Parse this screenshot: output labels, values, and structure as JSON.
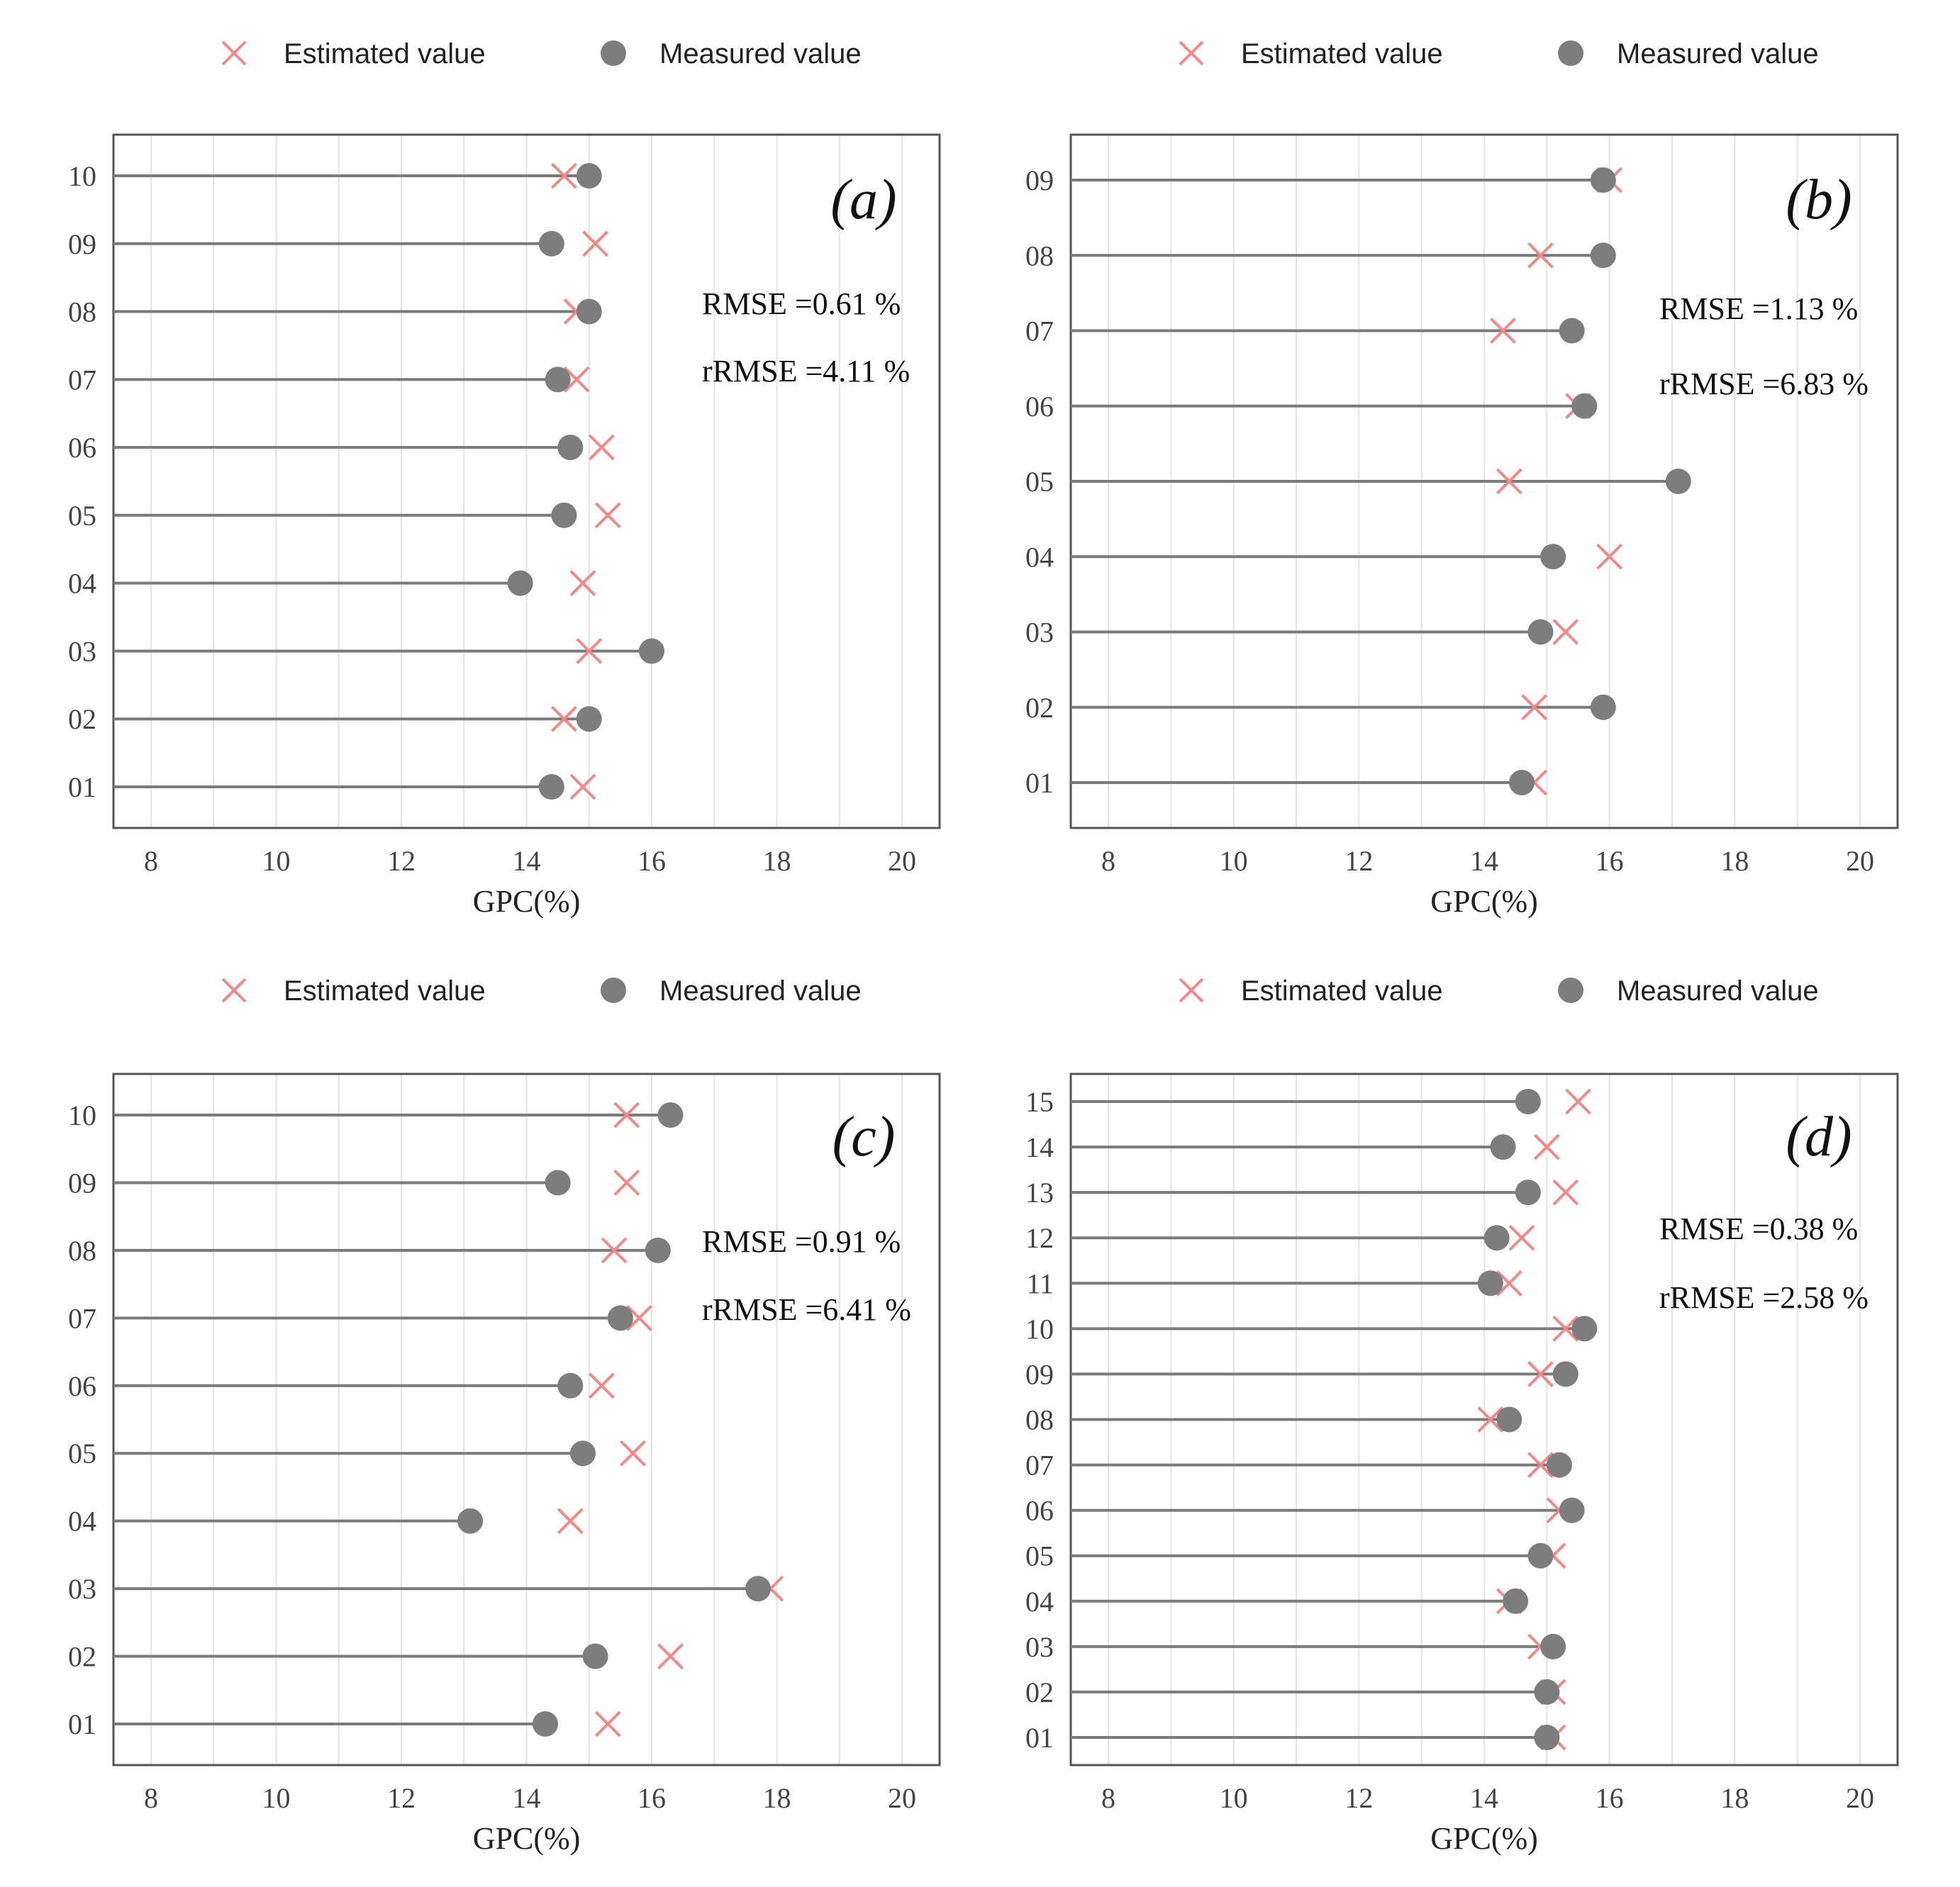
{
  "chart_data": [
    {
      "type": "lollipop",
      "panel": "(a)",
      "xlabel": "GPC(%)",
      "xlim": [
        7.4,
        20.6
      ],
      "xticks": [
        8,
        10,
        12,
        14,
        16,
        18,
        20
      ],
      "legend": [
        "Estimated value",
        "Measured value"
      ],
      "categories": [
        "01",
        "02",
        "03",
        "04",
        "05",
        "06",
        "07",
        "08",
        "09",
        "10"
      ],
      "series": [
        {
          "name": "Estimated value",
          "values": [
            14.9,
            14.6,
            15.0,
            14.9,
            15.3,
            15.2,
            14.8,
            14.8,
            15.1,
            14.6
          ]
        },
        {
          "name": "Measured value",
          "values": [
            14.4,
            15.0,
            16.0,
            13.9,
            14.6,
            14.7,
            14.5,
            15.0,
            14.4,
            15.0
          ]
        }
      ],
      "rmse": "RMSE =0.61 %",
      "rrmse": "rRMSE =4.11 %"
    },
    {
      "type": "lollipop",
      "panel": "(b)",
      "xlabel": "GPC(%)",
      "xlim": [
        7.4,
        20.6
      ],
      "xticks": [
        8,
        10,
        12,
        14,
        16,
        18,
        20
      ],
      "legend": [
        "Estimated value",
        "Measured value"
      ],
      "categories": [
        "01",
        "02",
        "03",
        "04",
        "05",
        "06",
        "07",
        "08",
        "09"
      ],
      "series": [
        {
          "name": "Estimated value",
          "values": [
            14.8,
            14.8,
            15.3,
            16.0,
            14.4,
            15.5,
            14.3,
            14.9,
            16.0
          ]
        },
        {
          "name": "Measured value",
          "values": [
            14.6,
            15.9,
            14.9,
            15.1,
            17.1,
            15.6,
            15.4,
            15.9,
            15.9
          ]
        }
      ],
      "rmse": "RMSE =1.13 %",
      "rrmse": "rRMSE =6.83 %"
    },
    {
      "type": "lollipop",
      "panel": "(c)",
      "xlabel": "GPC(%)",
      "xlim": [
        7.4,
        20.6
      ],
      "xticks": [
        8,
        10,
        12,
        14,
        16,
        18,
        20
      ],
      "legend": [
        "Estimated value",
        "Measured value"
      ],
      "categories": [
        "01",
        "02",
        "03",
        "04",
        "05",
        "06",
        "07",
        "08",
        "09",
        "10"
      ],
      "series": [
        {
          "name": "Estimated value",
          "values": [
            15.3,
            16.3,
            17.9,
            14.7,
            15.7,
            15.2,
            15.8,
            15.4,
            15.6,
            15.6
          ]
        },
        {
          "name": "Measured value",
          "values": [
            14.3,
            15.1,
            17.7,
            13.1,
            14.9,
            14.7,
            15.5,
            16.1,
            14.5,
            16.3
          ]
        }
      ],
      "rmse": "RMSE =0.91 %",
      "rrmse": "rRMSE =6.41 %"
    },
    {
      "type": "lollipop",
      "panel": "(d)",
      "xlabel": "GPC(%)",
      "xlim": [
        7.4,
        20.6
      ],
      "xticks": [
        8,
        10,
        12,
        14,
        16,
        18,
        20
      ],
      "legend": [
        "Estimated value",
        "Measured value"
      ],
      "categories": [
        "01",
        "02",
        "03",
        "04",
        "05",
        "06",
        "07",
        "08",
        "09",
        "10",
        "11",
        "12",
        "13",
        "14",
        "15"
      ],
      "series": [
        {
          "name": "Estimated value",
          "values": [
            15.1,
            15.1,
            14.9,
            14.4,
            15.1,
            15.2,
            14.9,
            14.1,
            14.9,
            15.3,
            14.4,
            14.6,
            15.3,
            15.0,
            15.5
          ]
        },
        {
          "name": "Measured value",
          "values": [
            15.0,
            15.0,
            15.1,
            14.5,
            14.9,
            15.4,
            15.2,
            14.4,
            15.3,
            15.6,
            14.1,
            14.2,
            14.7,
            14.3,
            14.7
          ]
        }
      ],
      "rmse": "RMSE =0.38 %",
      "rrmse": "rRMSE =2.58 %"
    }
  ]
}
